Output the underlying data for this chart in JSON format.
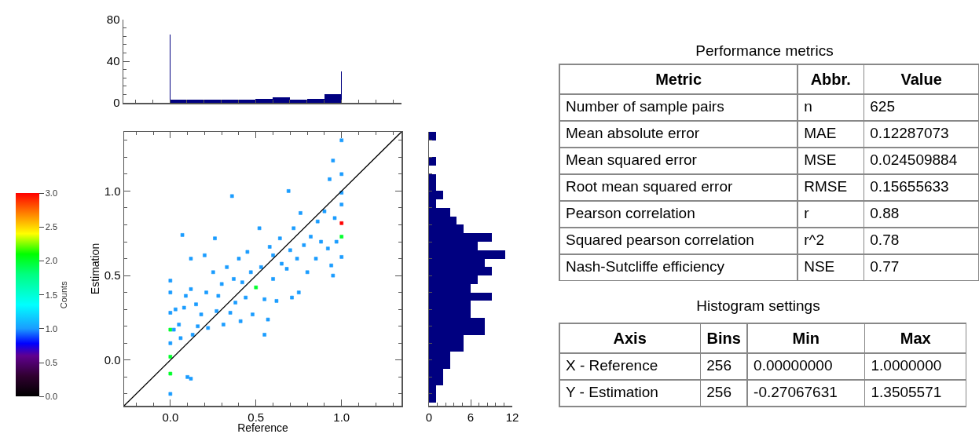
{
  "chart_data": [
    {
      "type": "histogram",
      "color": "#000080",
      "xlim": [
        -0.27,
        1.35
      ],
      "ylim": [
        0,
        80
      ],
      "yticks": [
        0,
        40,
        80
      ],
      "xticks": [
        {
          "value": 0,
          "label": null
        },
        {
          "value": 0.5,
          "label": null
        },
        {
          "value": 1,
          "label": null
        }
      ],
      "tick_labels": "y",
      "bins": [
        0,
        0.004,
        0.1,
        0.2,
        0.3,
        0.4,
        0.5,
        0.6,
        0.7,
        0.8,
        0.9,
        0.996,
        1.0
      ],
      "values": [
        66,
        3,
        3,
        3,
        3,
        3,
        4,
        5,
        3,
        4,
        8,
        30
      ]
    },
    {
      "type": "scatter",
      "xlabel": "Reference",
      "ylabel": "Estimation",
      "clabel": "Counts",
      "clim": [
        0,
        3
      ],
      "cticks": [
        {
          "value": 0,
          "label": "0.0"
        },
        0.5,
        {
          "value": 1,
          "label": "1.0"
        },
        1.5,
        {
          "value": 2,
          "label": "2.0"
        },
        2.5,
        {
          "value": 3,
          "label": "3.0"
        }
      ],
      "xlim": [
        -0.27,
        1.35
      ],
      "ylim": [
        -0.27,
        1.35
      ],
      "xticks": [
        {
          "value": 0,
          "label": "0.0"
        },
        0.5,
        {
          "value": 1,
          "label": "1.0"
        }
      ],
      "yticks": [
        {
          "value": 0,
          "label": "0.0"
        },
        0.5,
        {
          "value": 1,
          "label": "1.0"
        }
      ],
      "series": [
        {
          "type": "scatter",
          "marker": "square",
          "x": [
            0,
            0,
            0,
            0,
            0,
            0,
            0,
            0,
            0.02,
            0.03,
            0.05,
            0.06,
            0.07,
            0.08,
            0.09,
            0.1,
            0.12,
            0.12,
            0.12,
            0.13,
            0.15,
            0.16,
            0.18,
            0.2,
            0.21,
            0.22,
            0.25,
            0.26,
            0.27,
            0.28,
            0.3,
            0.31,
            0.33,
            0.35,
            0.36,
            0.37,
            0.38,
            0.4,
            0.41,
            0.42,
            0.44,
            0.45,
            0.47,
            0.48,
            0.5,
            0.52,
            0.53,
            0.55,
            0.55,
            0.57,
            0.58,
            0.6,
            0.6,
            0.62,
            0.64,
            0.65,
            0.68,
            0.69,
            0.7,
            0.71,
            0.72,
            0.74,
            0.75,
            0.76,
            0.78,
            0.8,
            0.82,
            0.85,
            0.86,
            0.88,
            0.9,
            0.92,
            0.93,
            0.94,
            0.95,
            0.95,
            0.96,
            0.97,
            1,
            1,
            1,
            1,
            1,
            1,
            1
          ],
          "values": [
            0.47,
            0.4,
            0.28,
            0.18,
            0.1,
            0.02,
            -0.08,
            -0.2,
            0.18,
            0.3,
            0.21,
            0.13,
            0.74,
            0.31,
            0.38,
            -0.1,
            -0.11,
            0.6,
            0.42,
            0.15,
            0.33,
            0.2,
            0.27,
            0.62,
            0.4,
            0.19,
            0.52,
            0.72,
            0.29,
            0.38,
            0.45,
            0.21,
            0.55,
            0.28,
            0.97,
            0.48,
            0.34,
            0.6,
            0.23,
            0.46,
            0.37,
            0.64,
            0.52,
            0.27,
            0.43,
            0.78,
            0.55,
            0.15,
            0.36,
            0.24,
            0.67,
            0.48,
            0.62,
            0.35,
            0.72,
            0.57,
            0.54,
            1.0,
            0.65,
            0.37,
            0.78,
            0.6,
            0.4,
            0.87,
            0.68,
            0.52,
            0.73,
            0.6,
            0.82,
            0.7,
            0.88,
            0.66,
            1.07,
            0.56,
            0.5,
            1.18,
            0.84,
            0.7,
            1.3,
            1.1,
            0.99,
            0.92,
            0.81,
            0.73,
            0.61
          ],
          "colors": [
            "#1a9cff",
            "#1a9cff",
            "#1a9cff",
            "#00ff2b",
            "#1a9cff",
            "#00ff2b",
            "#00ff2b",
            "#1a9cff",
            "#1a9cff",
            "#1a9cff",
            "#1a9cff",
            "#1a9cff",
            "#1a9cff",
            "#1a9cff",
            "#1a9cff",
            "#1a9cff",
            "#1a9cff",
            "#1a9cff",
            "#1a9cff",
            "#1a9cff",
            "#1a9cff",
            "#1a9cff",
            "#1a9cff",
            "#1a9cff",
            "#1a9cff",
            "#1a9cff",
            "#1a9cff",
            "#1a9cff",
            "#1a9cff",
            "#1a9cff",
            "#1a9cff",
            "#1a9cff",
            "#1a9cff",
            "#1a9cff",
            "#1a9cff",
            "#1a9cff",
            "#1a9cff",
            "#1a9cff",
            "#1a9cff",
            "#1a9cff",
            "#1a9cff",
            "#1a9cff",
            "#1a9cff",
            "#1a9cff",
            "#00ff2b",
            "#1a9cff",
            "#1a9cff",
            "#1a9cff",
            "#1a9cff",
            "#1a9cff",
            "#1a9cff",
            "#1a9cff",
            "#1a9cff",
            "#1a9cff",
            "#1a9cff",
            "#1a9cff",
            "#1a9cff",
            "#1a9cff",
            "#1a9cff",
            "#1a9cff",
            "#1a9cff",
            "#1a9cff",
            "#1a9cff",
            "#1a9cff",
            "#1a9cff",
            "#1a9cff",
            "#1a9cff",
            "#1a9cff",
            "#1a9cff",
            "#1a9cff",
            "#1a9cff",
            "#1a9cff",
            "#1a9cff",
            "#1a9cff",
            "#1a9cff",
            "#1a9cff",
            "#1a9cff",
            "#1a9cff",
            "#1a9cff",
            "#1a9cff",
            "#1a9cff",
            "#1a9cff",
            "#ff0000",
            "#00ff2b",
            "#1a9cff"
          ],
          "cvalues": [
            1,
            1,
            1,
            2,
            1,
            2,
            2,
            1,
            1,
            1,
            1,
            1,
            1,
            1,
            1,
            1,
            1,
            1,
            1,
            1,
            1,
            1,
            1,
            1,
            1,
            1,
            1,
            1,
            1,
            1,
            1,
            1,
            1,
            1,
            1,
            1,
            1,
            1,
            1,
            1,
            1,
            1,
            1,
            1,
            2,
            1,
            1,
            1,
            1,
            1,
            1,
            1,
            1,
            1,
            1,
            1,
            1,
            1,
            1,
            1,
            1,
            1,
            1,
            1,
            1,
            1,
            1,
            1,
            1,
            1,
            1,
            1,
            1,
            1,
            1,
            1,
            1,
            1,
            1,
            1,
            1,
            1,
            3,
            2,
            1
          ]
        },
        {
          "type": "line",
          "color": "#000000",
          "x": [
            -0.27,
            1.35
          ],
          "values": [
            -0.27,
            1.35
          ]
        }
      ]
    },
    {
      "type": "histogram",
      "orientation": "horizontal",
      "color": "#000080",
      "xlim": [
        0,
        12
      ],
      "xticks": [
        0,
        6,
        12
      ],
      "ylim": [
        -0.27,
        1.35
      ],
      "yticks": [
        {
          "value": 0,
          "label": null
        },
        {
          "value": 0.5,
          "label": null
        },
        {
          "value": 1,
          "label": null
        }
      ],
      "tick_labels": "x",
      "bins": [
        -0.25,
        -0.2,
        -0.15,
        -0.1,
        -0.05,
        0,
        0.05,
        0.1,
        0.15,
        0.2,
        0.25,
        0.3,
        0.35,
        0.4,
        0.45,
        0.5,
        0.55,
        0.6,
        0.65,
        0.7,
        0.75,
        0.8,
        0.85,
        0.9,
        0.95,
        1.0,
        1.05,
        1.1,
        1.15,
        1.2,
        1.25,
        1.3,
        1.35
      ],
      "values": [
        1,
        1,
        2,
        2,
        3,
        3,
        5,
        5,
        8,
        8,
        6,
        6,
        9,
        6,
        7,
        9,
        8,
        11,
        7,
        9,
        5,
        4,
        3,
        1,
        2,
        1,
        1,
        0,
        1,
        0,
        0,
        1
      ]
    },
    {
      "type": "other",
      "title": "Performance metrics",
      "categories": [
        "Metric",
        "Abbr.",
        "Value"
      ],
      "cell_labels": [
        [
          "Number of sample pairs",
          "n",
          "625"
        ],
        [
          "Mean absolute error",
          "MAE",
          "0.12287073"
        ],
        [
          "Mean squared error",
          "MSE",
          "0.024509884"
        ],
        [
          "Root mean squared error",
          "RMSE",
          "0.15655633"
        ],
        [
          "Pearson correlation",
          "r",
          "0.88"
        ],
        [
          "Squared pearson correlation",
          "r^2",
          "0.78"
        ],
        [
          "Nash-Sutcliffe efficiency",
          "NSE",
          "0.77"
        ]
      ]
    },
    {
      "type": "other",
      "title": "Histogram settings",
      "categories": [
        "Axis",
        "Bins",
        "Min",
        "Max"
      ],
      "cell_labels": [
        [
          "X - Reference",
          "256",
          "0.00000000",
          "1.0000000"
        ],
        [
          "Y - Estimation",
          "256",
          "-0.27067631",
          "1.3505571"
        ]
      ]
    }
  ]
}
